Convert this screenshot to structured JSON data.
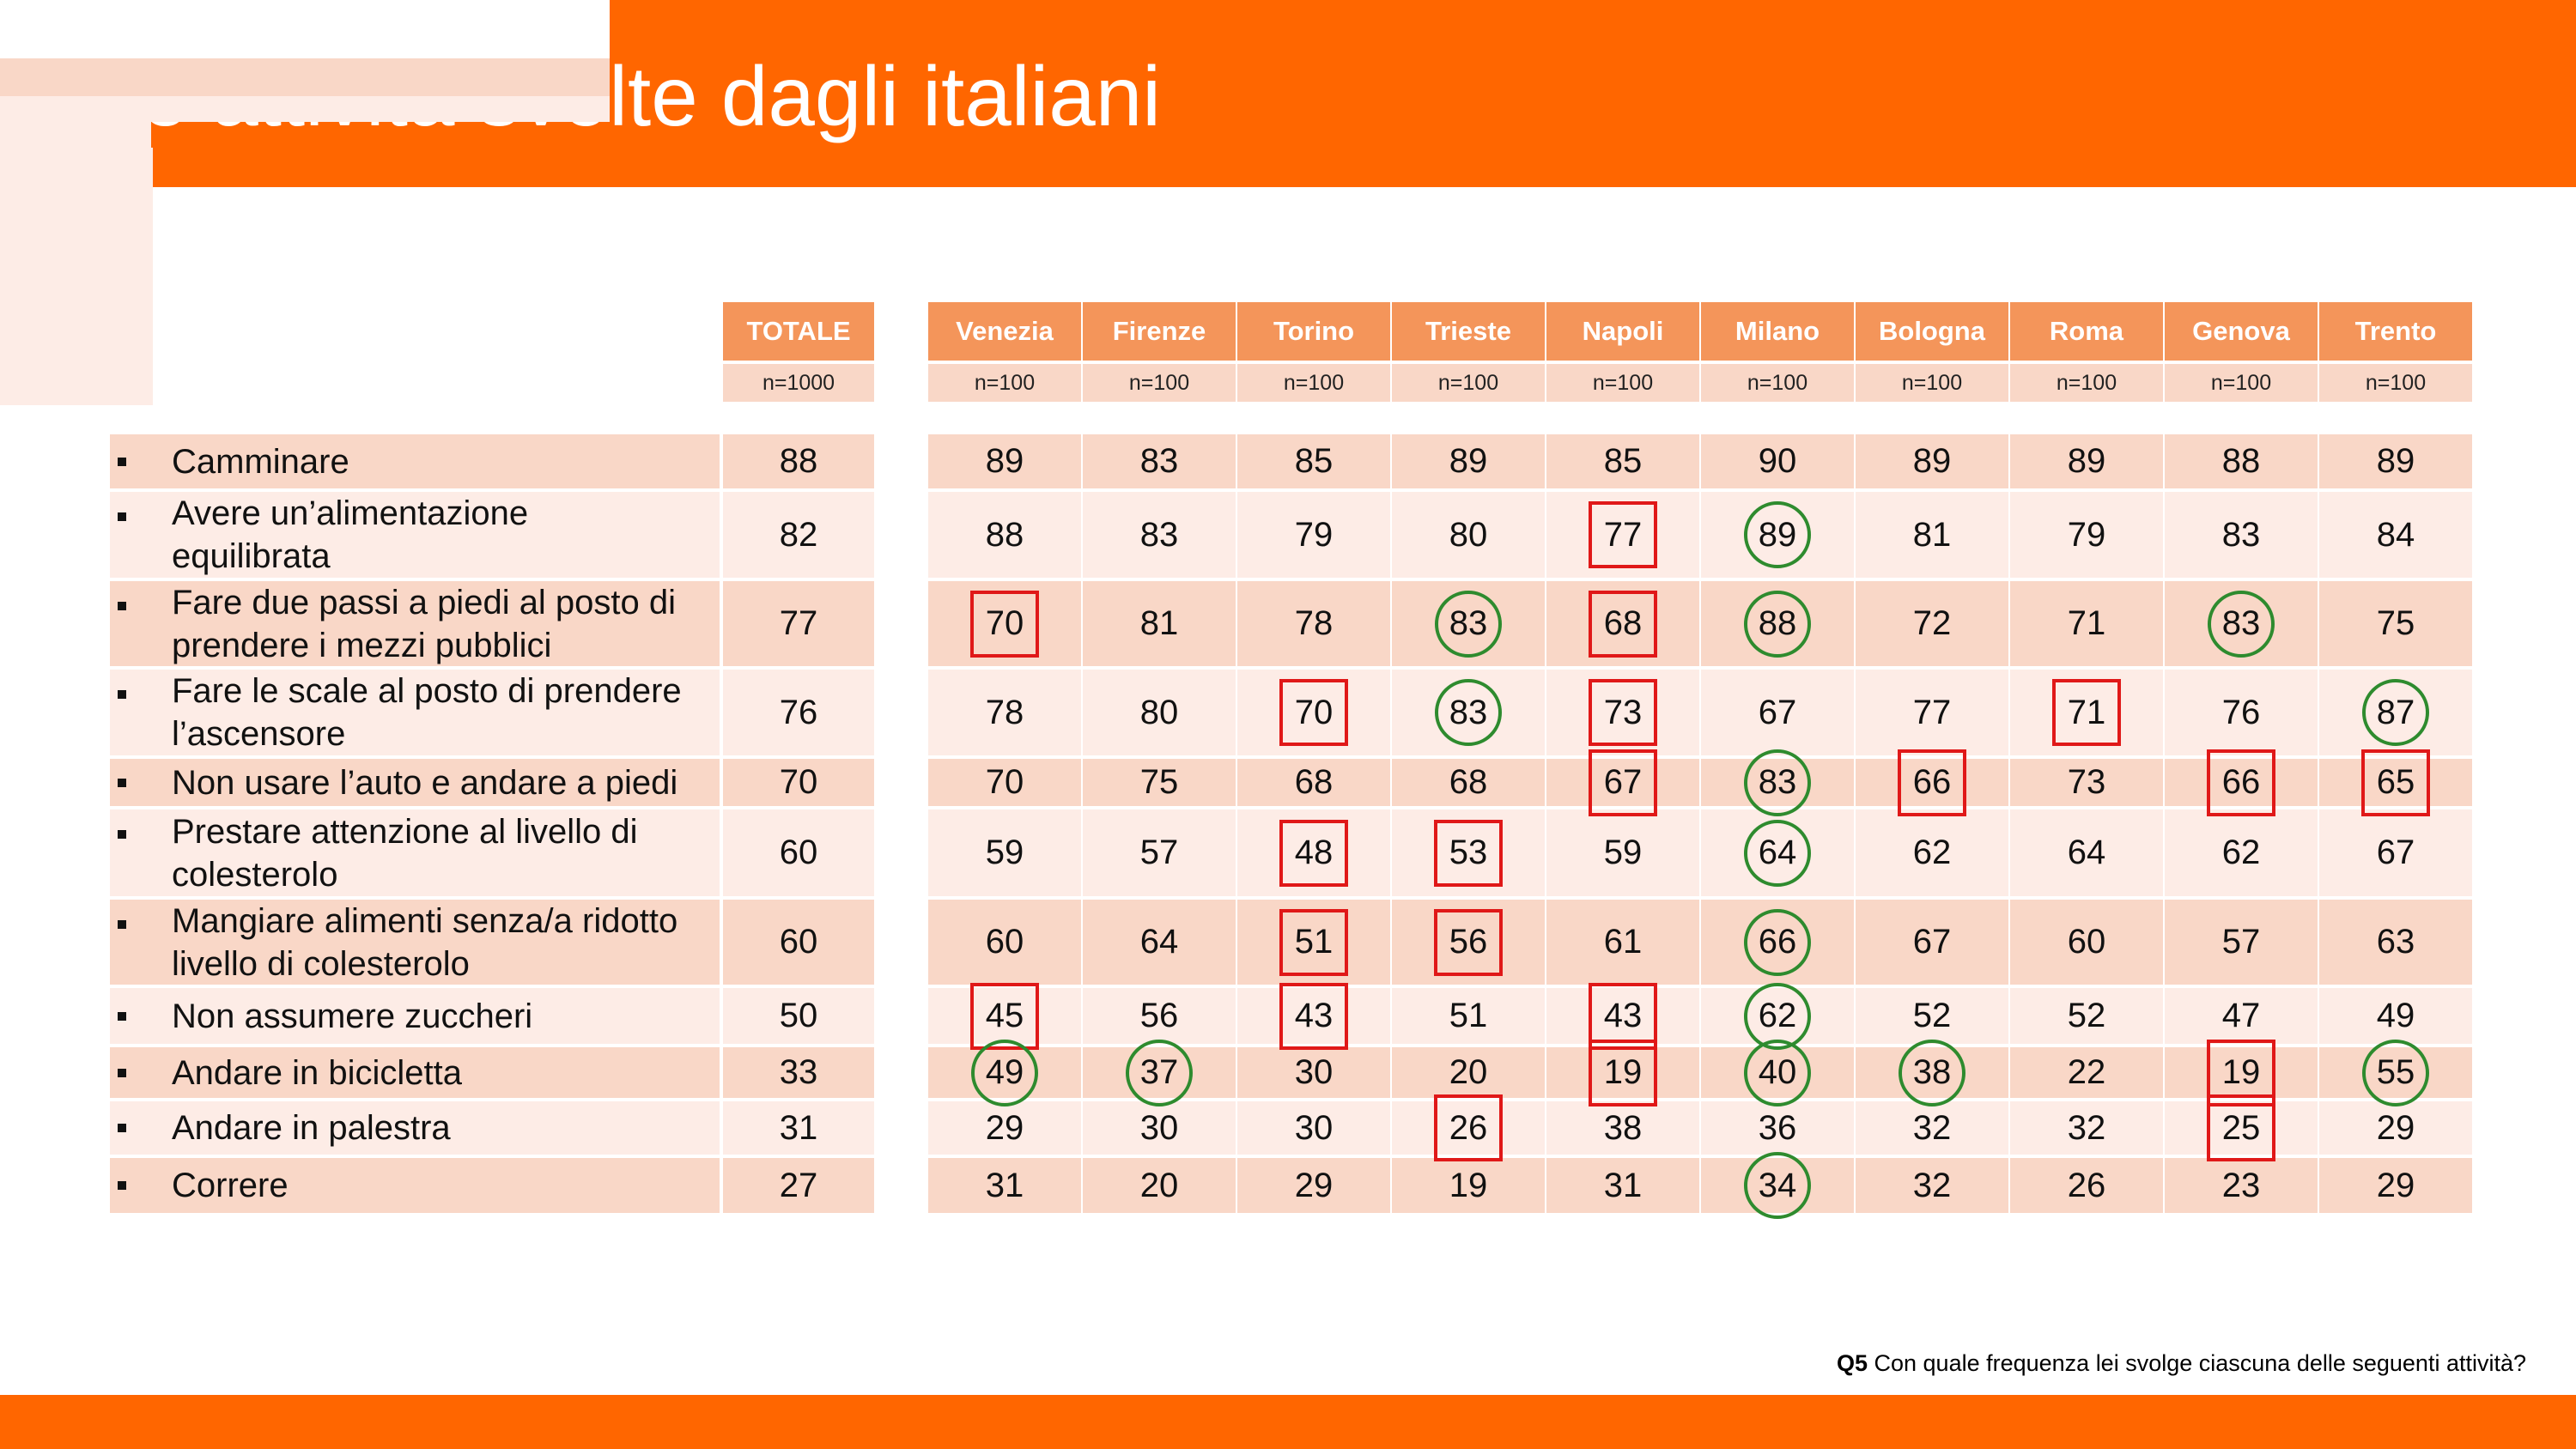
{
  "title": "Le attività svolte dagli italiani",
  "footnote": {
    "code": "Q5",
    "text": "Con quale frequenza lei svolge ciascuna delle seguenti attività?"
  },
  "colors": {
    "brand_orange": "#ff6600",
    "header_fill": "#f4955a",
    "row_dark": "#f9d7c7",
    "row_light": "#fdecE6",
    "below_marker": "#e01818",
    "above_marker": "#2e8b2e"
  },
  "chart_data": {
    "type": "table",
    "total_column": {
      "label": "TOTALE",
      "n": "n=1000"
    },
    "cities": [
      {
        "label": "Venezia",
        "n": "n=100"
      },
      {
        "label": "Firenze",
        "n": "n=100"
      },
      {
        "label": "Torino",
        "n": "n=100"
      },
      {
        "label": "Trieste",
        "n": "n=100"
      },
      {
        "label": "Napoli",
        "n": "n=100"
      },
      {
        "label": "Milano",
        "n": "n=100"
      },
      {
        "label": "Bologna",
        "n": "n=100"
      },
      {
        "label": "Roma",
        "n": "n=100"
      },
      {
        "label": "Genova",
        "n": "n=100"
      },
      {
        "label": "Trento",
        "n": "n=100"
      }
    ],
    "rows": [
      {
        "label_lines": [
          "Camminare"
        ],
        "total": 88,
        "values": [
          89,
          83,
          85,
          89,
          85,
          90,
          89,
          89,
          88,
          89
        ]
      },
      {
        "label_lines": [
          "Avere un’alimentazione",
          "equilibrata"
        ],
        "total": 82,
        "values": [
          88,
          83,
          79,
          80,
          77,
          89,
          81,
          79,
          83,
          84
        ]
      },
      {
        "label_lines": [
          "Fare due passi a piedi al posto di",
          "prendere i mezzi pubblici"
        ],
        "total": 77,
        "values": [
          70,
          81,
          78,
          83,
          68,
          88,
          72,
          71,
          83,
          75
        ]
      },
      {
        "label_lines": [
          "Fare le scale al posto di prendere",
          "l’ascensore"
        ],
        "total": 76,
        "values": [
          78,
          80,
          70,
          83,
          73,
          67,
          77,
          71,
          76,
          87
        ]
      },
      {
        "label_lines": [
          "Non usare l’auto e andare a piedi"
        ],
        "total": 70,
        "values": [
          70,
          75,
          68,
          68,
          67,
          83,
          66,
          73,
          66,
          65
        ]
      },
      {
        "label_lines": [
          "Prestare attenzione al livello di",
          "colesterolo"
        ],
        "total": 60,
        "values": [
          59,
          57,
          48,
          53,
          59,
          64,
          62,
          64,
          62,
          67
        ]
      },
      {
        "label_lines": [
          "Mangiare alimenti senza/a ridotto",
          "livello di colesterolo"
        ],
        "total": 60,
        "values": [
          60,
          64,
          51,
          56,
          61,
          66,
          67,
          60,
          57,
          63
        ]
      },
      {
        "label_lines": [
          "Non assumere zuccheri"
        ],
        "total": 50,
        "values": [
          45,
          56,
          43,
          51,
          43,
          62,
          52,
          52,
          47,
          49
        ]
      },
      {
        "label_lines": [
          "Andare in bicicletta"
        ],
        "total": 33,
        "values": [
          49,
          37,
          30,
          20,
          19,
          40,
          38,
          22,
          19,
          55
        ]
      },
      {
        "label_lines": [
          "Andare in palestra"
        ],
        "total": 31,
        "values": [
          29,
          30,
          30,
          26,
          38,
          36,
          32,
          32,
          25,
          29
        ]
      },
      {
        "label_lines": [
          "Correre"
        ],
        "total": 27,
        "values": [
          31,
          20,
          29,
          19,
          31,
          34,
          32,
          26,
          23,
          29
        ]
      }
    ],
    "marks": {
      "below_boxes": [
        [
          1,
          4
        ],
        [
          2,
          0
        ],
        [
          2,
          4
        ],
        [
          3,
          2
        ],
        [
          3,
          4
        ],
        [
          3,
          7
        ],
        [
          4,
          4
        ],
        [
          4,
          6
        ],
        [
          4,
          8
        ],
        [
          4,
          9
        ],
        [
          5,
          2
        ],
        [
          5,
          3
        ],
        [
          6,
          2
        ],
        [
          6,
          3
        ],
        [
          7,
          0
        ],
        [
          7,
          2
        ],
        [
          7,
          4
        ],
        [
          8,
          4
        ],
        [
          8,
          8
        ],
        [
          9,
          3
        ],
        [
          9,
          8
        ]
      ],
      "above_circles": [
        [
          1,
          5
        ],
        [
          2,
          3
        ],
        [
          2,
          5
        ],
        [
          2,
          8
        ],
        [
          3,
          3
        ],
        [
          3,
          9
        ],
        [
          4,
          5
        ],
        [
          5,
          5
        ],
        [
          6,
          5
        ],
        [
          7,
          5
        ],
        [
          8,
          0
        ],
        [
          8,
          1
        ],
        [
          8,
          5
        ],
        [
          8,
          6
        ],
        [
          8,
          9
        ],
        [
          10,
          5
        ]
      ]
    }
  }
}
